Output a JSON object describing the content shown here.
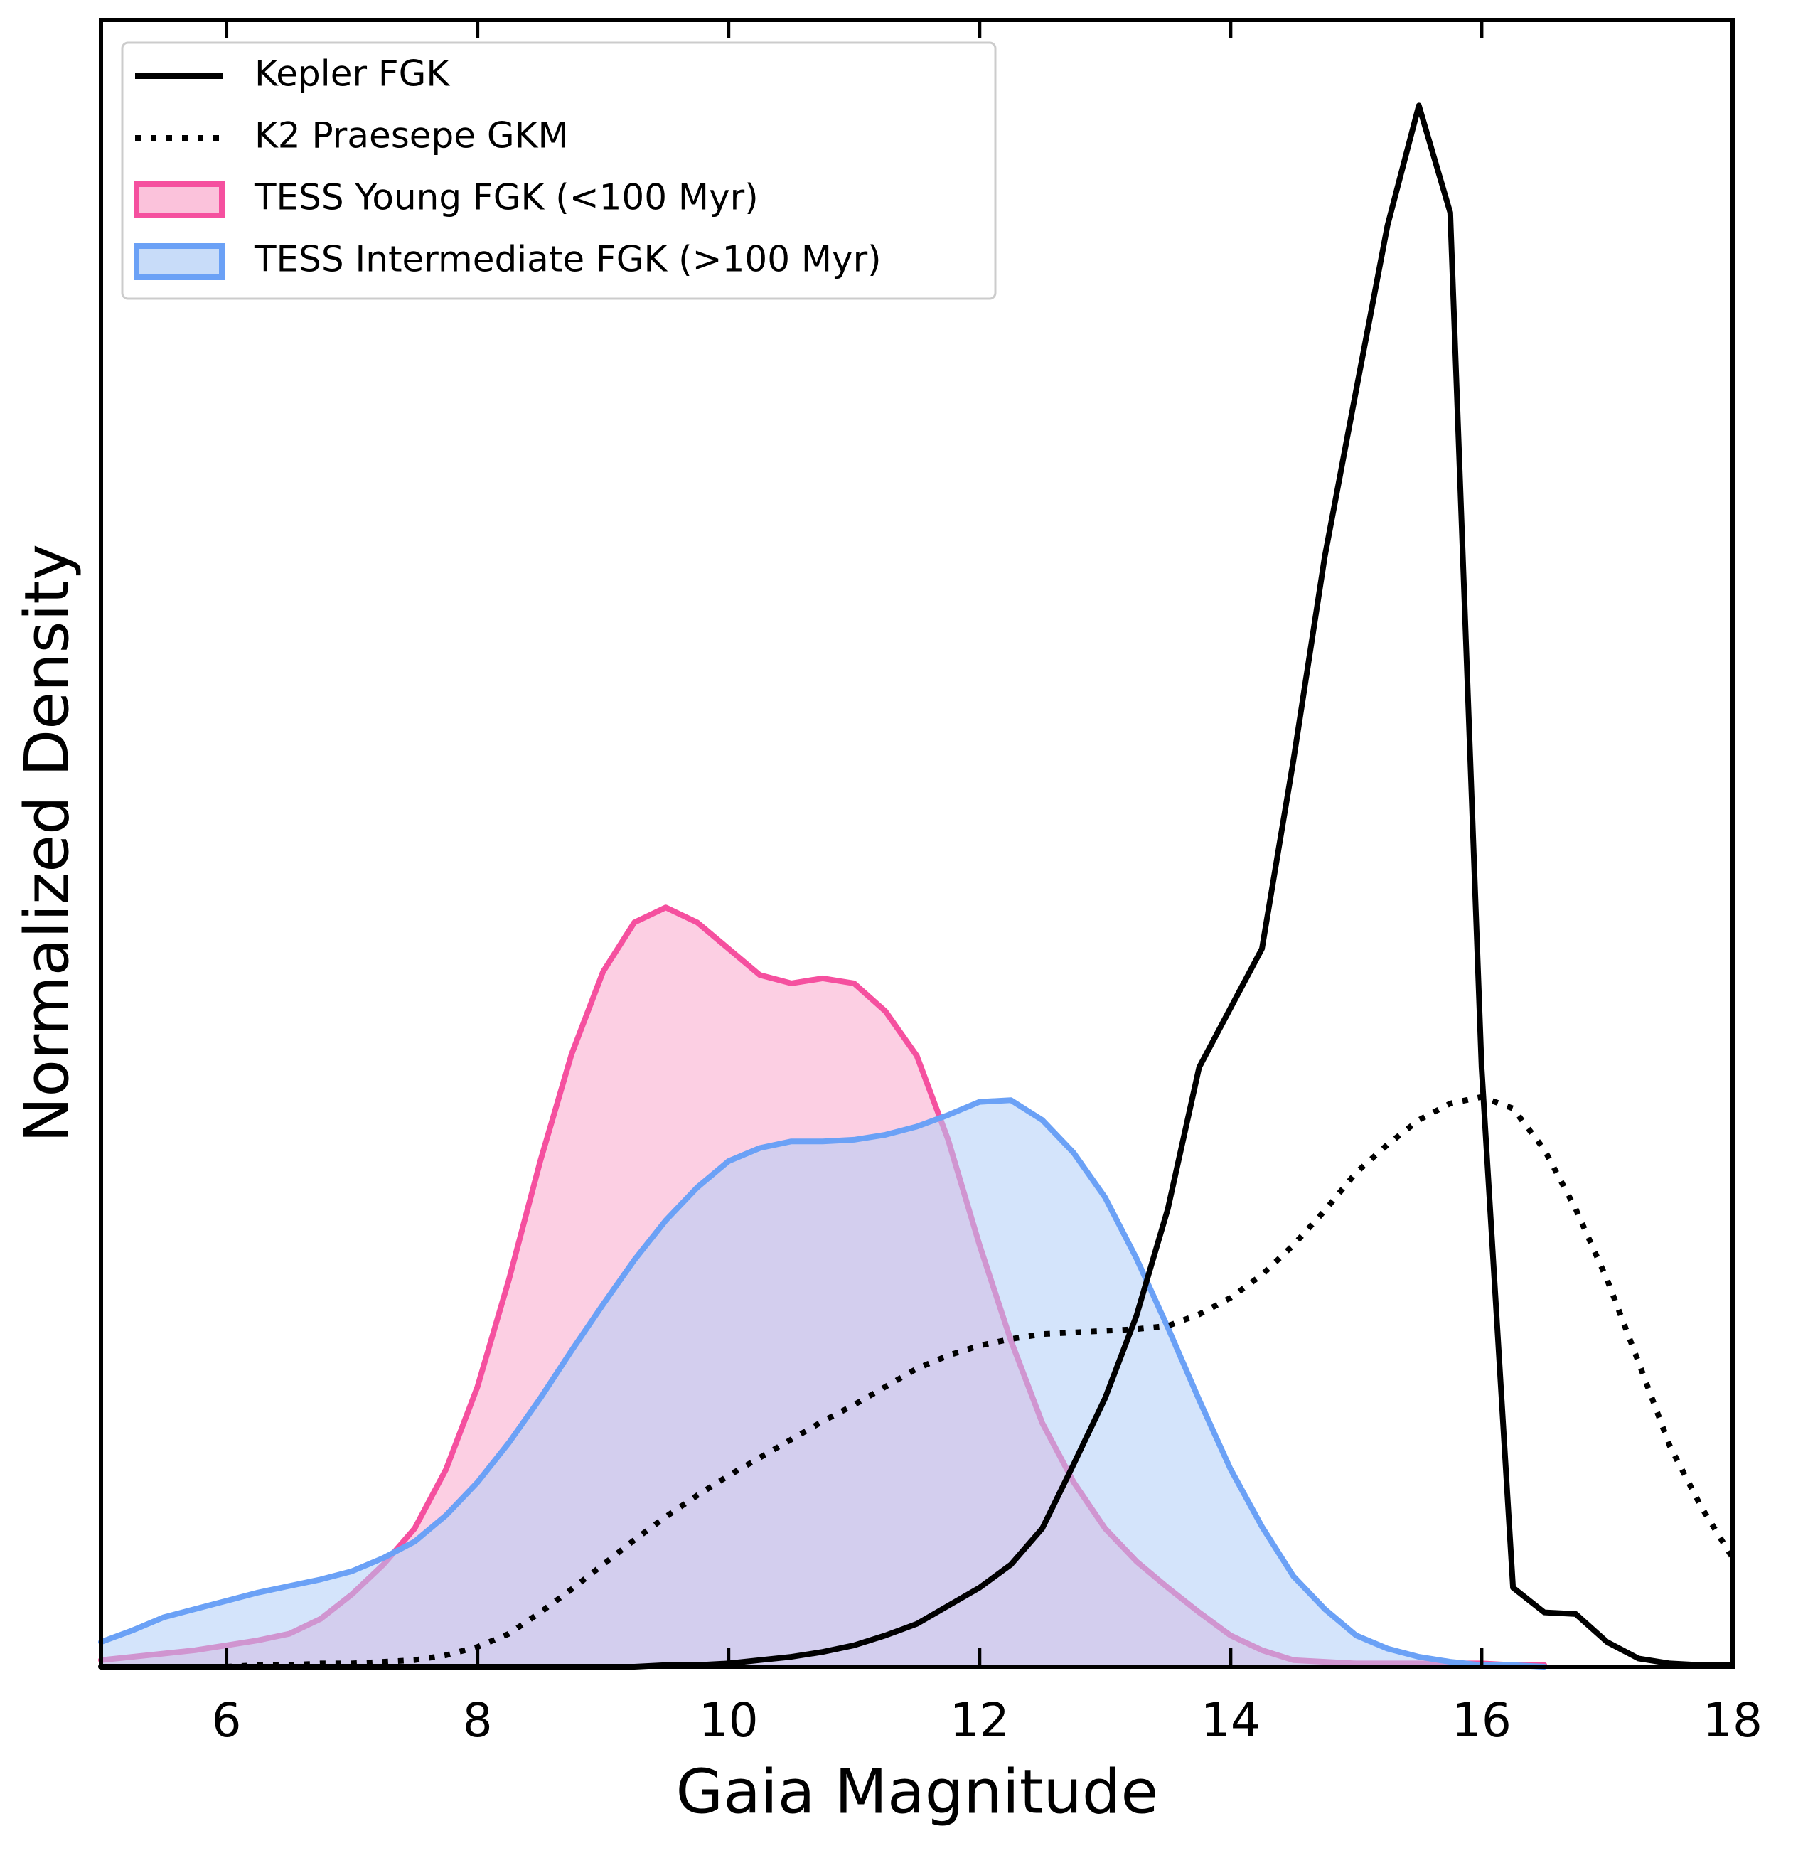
{
  "chart_data": {
    "type": "line",
    "xlabel": "Gaia Magnitude",
    "ylabel": "Normalized Density",
    "xlim": [
      5,
      18
    ],
    "xticks": [
      6,
      8,
      10,
      12,
      14,
      16,
      18
    ],
    "ylim": [
      0,
      1
    ],
    "legend": "upper left",
    "x": [
      5,
      5.25,
      5.5,
      5.75,
      6,
      6.25,
      6.5,
      6.75,
      7,
      7.25,
      7.5,
      7.75,
      8,
      8.25,
      8.5,
      8.75,
      9,
      9.25,
      9.5,
      9.75,
      10,
      10.25,
      10.5,
      10.75,
      11,
      11.25,
      11.5,
      11.75,
      12,
      12.25,
      12.5,
      12.75,
      13,
      13.25,
      13.5,
      13.75,
      14,
      14.25,
      14.5,
      14.75,
      15,
      15.25,
      15.5,
      15.75,
      16,
      16.25,
      16.5,
      16.75,
      17,
      17.25,
      17.5,
      17.75,
      18
    ],
    "series": [
      {
        "name": "TESS Young FGK (<100 Myr)",
        "style": "fill",
        "color": "#f5509f",
        "fill": "#f9a8cc",
        "values": [
          0.004,
          0.006,
          0.008,
          0.01,
          0.013,
          0.016,
          0.02,
          0.029,
          0.044,
          0.062,
          0.084,
          0.12,
          0.17,
          0.235,
          0.307,
          0.372,
          0.422,
          0.452,
          0.461,
          0.452,
          0.436,
          0.42,
          0.415,
          0.418,
          0.415,
          0.398,
          0.371,
          0.32,
          0.256,
          0.198,
          0.148,
          0.112,
          0.084,
          0.064,
          0.048,
          0.033,
          0.019,
          0.01,
          0.004,
          0.003,
          0.002,
          0.002,
          0.002,
          0.002,
          0.002,
          0.001,
          0.001,
          null,
          null,
          null,
          null,
          null,
          null
        ]
      },
      {
        "name": "TESS Intermediate FGK (>100 Myr)",
        "style": "fill",
        "color": "#6ba1f6",
        "fill": "#b0cdf7",
        "values": [
          0.015,
          0.022,
          0.03,
          0.035,
          0.04,
          0.045,
          0.049,
          0.053,
          0.058,
          0.066,
          0.076,
          0.092,
          0.112,
          0.136,
          0.163,
          0.192,
          0.22,
          0.247,
          0.271,
          0.291,
          0.307,
          0.315,
          0.319,
          0.319,
          0.32,
          0.323,
          0.328,
          0.335,
          0.343,
          0.344,
          0.332,
          0.312,
          0.285,
          0.248,
          0.206,
          0.162,
          0.12,
          0.085,
          0.055,
          0.035,
          0.019,
          0.011,
          0.006,
          0.003,
          0.001,
          0.001,
          0,
          null,
          null,
          null,
          null,
          null,
          null
        ]
      },
      {
        "name": "Kepler FGK",
        "style": "solid",
        "color": "#000000",
        "values": [
          0,
          0,
          0,
          0,
          0,
          0,
          0,
          0,
          0,
          0,
          0,
          0,
          0,
          0,
          0,
          0,
          0,
          0,
          0.001,
          0.001,
          0.002,
          0.004,
          0.006,
          0.009,
          0.013,
          0.019,
          0.026,
          0.037,
          0.048,
          0.062,
          0.084,
          0.123,
          0.163,
          0.213,
          0.278,
          0.364,
          0.4,
          0.436,
          0.55,
          0.674,
          0.775,
          0.875,
          0.948,
          0.883,
          0.364,
          0.048,
          0.033,
          0.032,
          0.015,
          0.005,
          0.002,
          0.001,
          0.001
        ]
      },
      {
        "name": "K2 Praesepe GKM",
        "style": "dotted",
        "color": "#000000",
        "values": [
          0,
          0,
          0,
          0,
          0,
          0.001,
          0.001,
          0.002,
          0.002,
          0.003,
          0.004,
          0.007,
          0.012,
          0.02,
          0.033,
          0.047,
          0.062,
          0.077,
          0.091,
          0.104,
          0.116,
          0.127,
          0.138,
          0.149,
          0.159,
          0.17,
          0.181,
          0.189,
          0.195,
          0.199,
          0.202,
          0.203,
          0.204,
          0.205,
          0.207,
          0.214,
          0.224,
          0.238,
          0.256,
          0.277,
          0.3,
          0.317,
          0.332,
          0.342,
          0.346,
          0.339,
          0.314,
          0.278,
          0.235,
          0.185,
          0.134,
          0.097,
          0.066
        ]
      }
    ]
  }
}
